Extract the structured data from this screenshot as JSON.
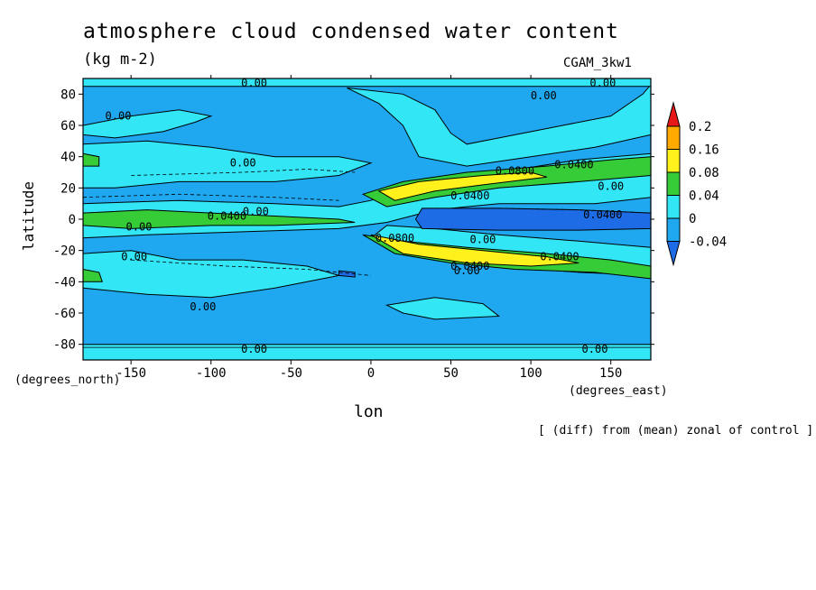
{
  "chart_data": {
    "type": "heatmap",
    "title": "atmosphere cloud condensed water content",
    "units": "(kg m-2)",
    "model": "CGAM_3kw1",
    "xlabel": "lon",
    "ylabel": "latitude",
    "x_units": "(degrees_east)",
    "y_units": "(degrees_north)",
    "note": "[ (diff) from (mean) zonal of control ]",
    "xlim": [
      -180,
      175
    ],
    "ylim": [
      -90,
      90
    ],
    "x_ticks": [
      -150,
      -100,
      -50,
      0,
      50,
      100,
      150
    ],
    "y_ticks": [
      80,
      60,
      40,
      20,
      0,
      -20,
      -40,
      -60,
      -80
    ],
    "colorbar": {
      "levels": [
        -0.04,
        0,
        0.04,
        0.08,
        0.16,
        0.2
      ],
      "level_labels": [
        "-0.04",
        "0",
        "0.04",
        "0.08",
        "0.16",
        "0.2"
      ],
      "colors": [
        "#1e6be6",
        "#1fa7f0",
        "#33e6f5",
        "#36cc38",
        "#fff21c",
        "#ffaa00",
        "#e81818"
      ]
    },
    "contour_labels": [
      {
        "text": "0.00",
        "lon": -73,
        "lat": 87
      },
      {
        "text": "0.00",
        "lon": 145,
        "lat": 87
      },
      {
        "text": "0.00",
        "lon": 108,
        "lat": 79
      },
      {
        "text": "0.00",
        "lon": -158,
        "lat": 66
      },
      {
        "text": "0.00",
        "lon": -80,
        "lat": 36
      },
      {
        "text": "0.0800",
        "lon": 90,
        "lat": 31
      },
      {
        "text": "0.0400",
        "lon": 127,
        "lat": 35
      },
      {
        "text": "0.0400",
        "lon": 62,
        "lat": 15
      },
      {
        "text": "0.00",
        "lon": 150,
        "lat": 21
      },
      {
        "text": "0.0400",
        "lon": -90,
        "lat": 2
      },
      {
        "text": "0.00",
        "lon": -72,
        "lat": 5
      },
      {
        "text": "0.0400",
        "lon": 145,
        "lat": 3
      },
      {
        "text": "0.00",
        "lon": -145,
        "lat": -5
      },
      {
        "text": "0.0800",
        "lon": 15,
        "lat": -12
      },
      {
        "text": "0.00",
        "lon": 70,
        "lat": -13
      },
      {
        "text": "0.00",
        "lon": -148,
        "lat": -24
      },
      {
        "text": "0.0400",
        "lon": 118,
        "lat": -24
      },
      {
        "text": "0.0400",
        "lon": 62,
        "lat": -30
      },
      {
        "text": "0.00",
        "lon": 60,
        "lat": -33
      },
      {
        "text": "0.00",
        "lon": -105,
        "lat": -56
      },
      {
        "text": "0.00",
        "lon": -73,
        "lat": -83
      },
      {
        "text": "0.00",
        "lon": 140,
        "lat": -83
      }
    ]
  }
}
